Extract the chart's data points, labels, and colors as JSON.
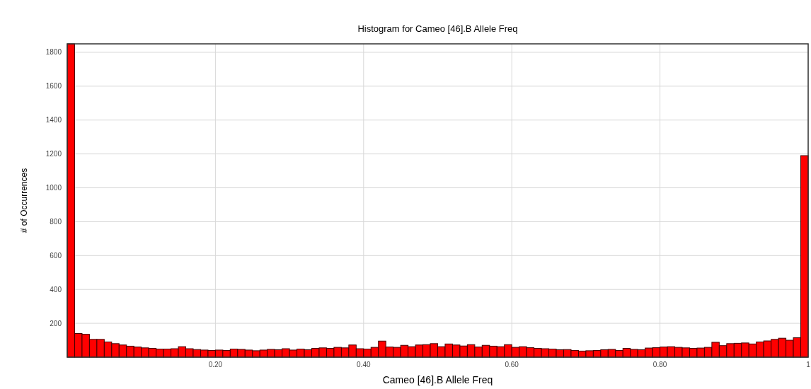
{
  "chart_data": {
    "type": "histogram",
    "title": "Histogram for Cameo [46].B Allele Freq",
    "xlabel": "Cameo [46].B Allele Freq",
    "ylabel": "# of Occurrences",
    "bins": [
      0,
      0.01,
      0.02,
      0.03,
      0.04,
      0.05,
      0.06,
      0.07,
      0.08,
      0.09,
      0.1,
      0.11,
      0.12,
      0.13,
      0.14,
      0.15,
      0.16,
      0.17,
      0.18,
      0.19,
      0.2,
      0.21,
      0.22,
      0.23,
      0.24,
      0.25,
      0.26,
      0.27,
      0.28,
      0.29,
      0.3,
      0.31,
      0.32,
      0.33,
      0.34,
      0.35,
      0.36,
      0.37,
      0.38,
      0.39,
      0.4,
      0.41,
      0.42,
      0.43,
      0.44,
      0.45,
      0.46,
      0.47,
      0.48,
      0.49,
      0.5,
      0.51,
      0.52,
      0.53,
      0.54,
      0.55,
      0.56,
      0.57,
      0.58,
      0.59,
      0.6,
      0.61,
      0.62,
      0.63,
      0.64,
      0.65,
      0.66,
      0.67,
      0.68,
      0.69,
      0.7,
      0.71,
      0.72,
      0.73,
      0.74,
      0.75,
      0.76,
      0.77,
      0.78,
      0.79,
      0.8,
      0.81,
      0.82,
      0.83,
      0.84,
      0.85,
      0.86,
      0.87,
      0.88,
      0.89,
      0.9,
      0.91,
      0.92,
      0.93,
      0.94,
      0.95,
      0.96,
      0.97,
      0.98,
      0.99,
      1
    ],
    "values": [
      1850,
      140,
      135,
      105,
      105,
      90,
      80,
      72,
      65,
      60,
      55,
      52,
      48,
      48,
      50,
      62,
      50,
      45,
      42,
      40,
      42,
      40,
      48,
      46,
      42,
      38,
      42,
      46,
      44,
      50,
      42,
      48,
      44,
      52,
      55,
      52,
      58,
      55,
      72,
      50,
      48,
      58,
      95,
      60,
      58,
      70,
      62,
      72,
      74,
      80,
      62,
      78,
      72,
      66,
      74,
      60,
      70,
      65,
      62,
      74,
      58,
      62,
      56,
      52,
      50,
      48,
      44,
      45,
      40,
      36,
      38,
      40,
      44,
      46,
      40,
      52,
      46,
      44,
      54,
      56,
      60,
      62,
      58,
      55,
      52,
      54,
      58,
      88,
      68,
      80,
      82,
      84,
      78,
      90,
      96,
      105,
      112,
      100,
      115,
      1190
    ],
    "color": "#ff0000",
    "xlim": [
      0,
      1
    ],
    "ylim": [
      0,
      1850
    ],
    "xticks": [
      {
        "value": 0.2,
        "label": "0.20"
      },
      {
        "value": 0.4,
        "label": "0.40"
      },
      {
        "value": 0.6,
        "label": "0.60"
      },
      {
        "value": 0.8,
        "label": "0.80"
      },
      1
    ],
    "yticks": [
      200,
      400,
      600,
      800,
      1000,
      1200,
      1400,
      1600,
      1800
    ],
    "grid": true
  }
}
